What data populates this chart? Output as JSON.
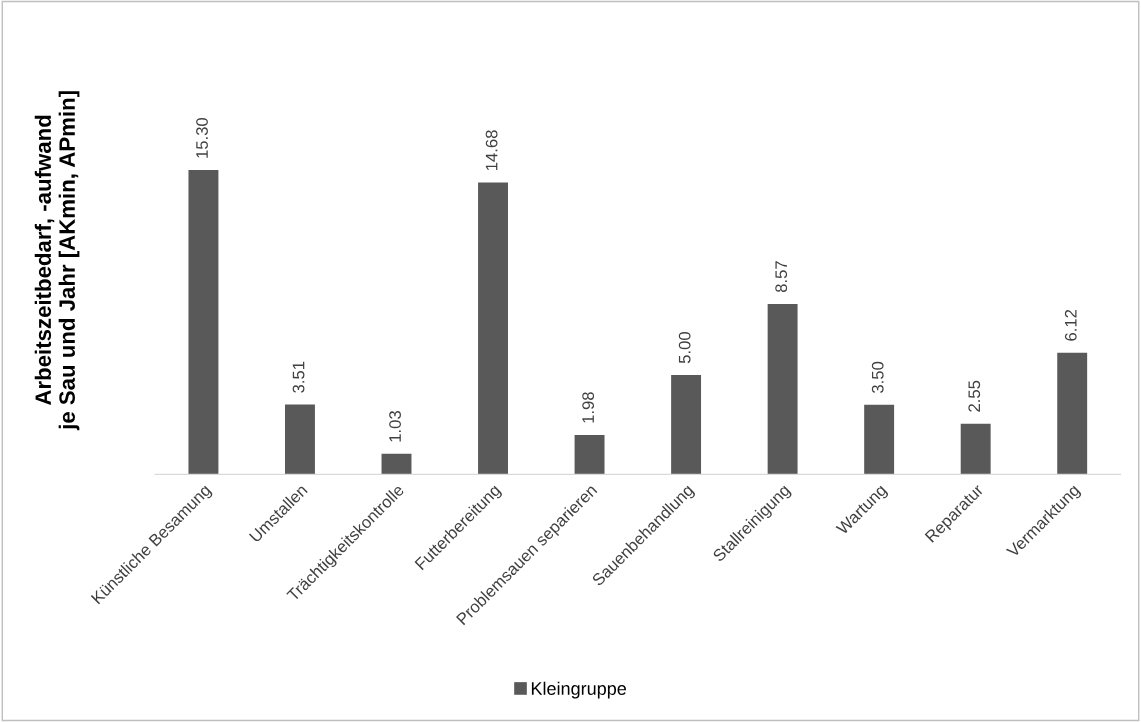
{
  "chart_data": {
    "type": "bar",
    "ylabel": "Arbeitszeitbedarf, -aufwand\nje Sau und Jahr [AKmin, APmin]",
    "categories": [
      "Künstliche Besamung",
      "Umstallen",
      "Trächtigkeitskontrolle",
      "Futterbereitung",
      "Problemsauen separieren",
      "Sauenbehandlung",
      "Stallreinigung",
      "Wartung",
      "Reparatur",
      "Vermarktung"
    ],
    "series": [
      {
        "name": "Kleingruppe",
        "color": "#595959",
        "values": [
          15.3,
          3.51,
          1.03,
          14.68,
          1.98,
          5.0,
          8.57,
          3.5,
          2.55,
          6.12
        ],
        "value_labels": [
          "15.30",
          "3.51",
          "1.03",
          "14.68",
          "1.98",
          "5.00",
          "8.57",
          "3.50",
          "2.55",
          "6.12"
        ]
      }
    ],
    "legend": "bottom",
    "grid": false
  }
}
